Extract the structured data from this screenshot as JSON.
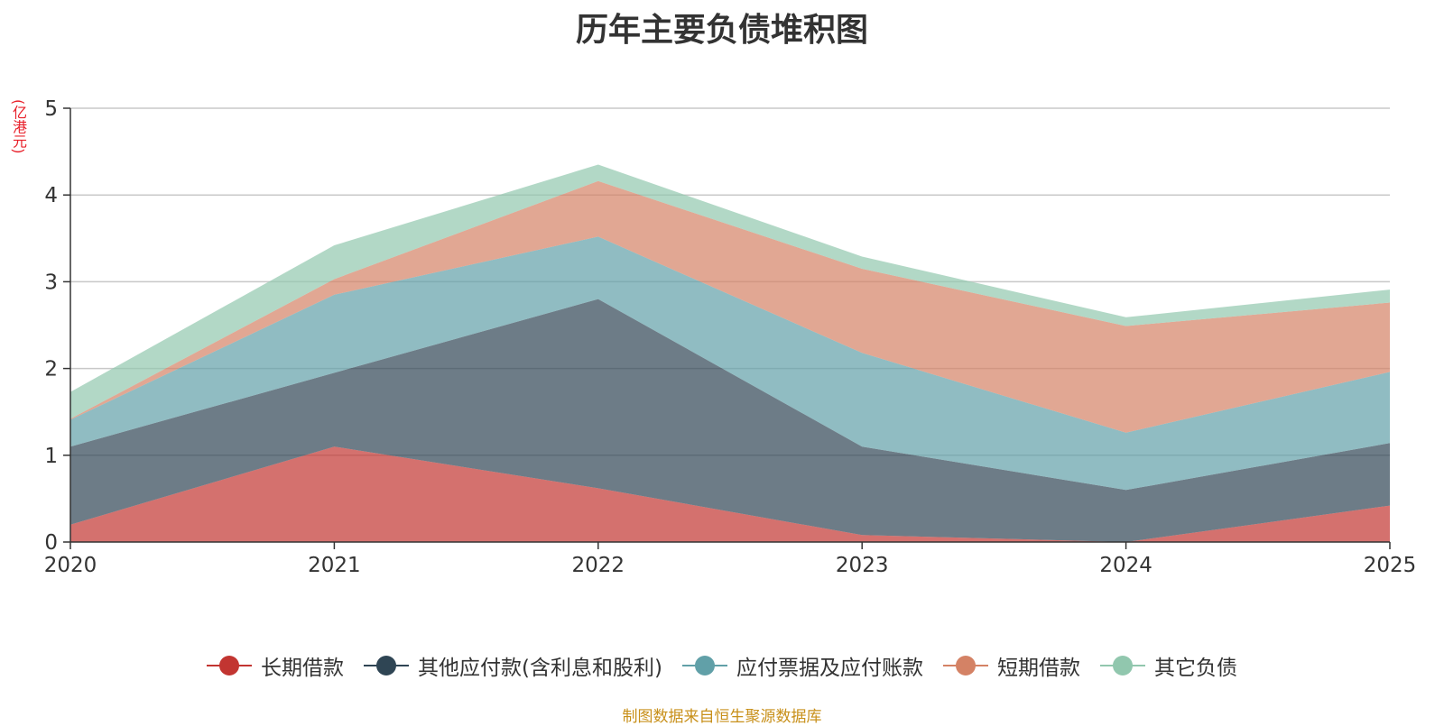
{
  "chart_data": {
    "type": "area",
    "stacked": true,
    "title": "历年主要负债堆积图",
    "ylabel": "(亿港元)",
    "xlabel": "",
    "x": [
      "2020",
      "2021",
      "2022",
      "2023",
      "2024",
      "2025"
    ],
    "ylim": [
      0,
      5
    ],
    "yticks": [
      "0",
      "1",
      "2",
      "3",
      "4",
      "5"
    ],
    "grid": true,
    "legend_position": "bottom",
    "series": [
      {
        "name": "长期借款",
        "color": "#c23531",
        "values": [
          0.2,
          1.1,
          0.62,
          0.08,
          0.0,
          0.42
        ]
      },
      {
        "name": "其他应付款(含利息和股利)",
        "color": "#2f4554",
        "values": [
          0.9,
          0.85,
          2.18,
          1.02,
          0.6,
          0.72
        ]
      },
      {
        "name": "应付票据及应付账款",
        "color": "#61a0a8",
        "values": [
          0.31,
          0.9,
          0.72,
          1.08,
          0.66,
          0.82
        ]
      },
      {
        "name": "短期借款",
        "color": "#d48265",
        "values": [
          0.01,
          0.18,
          0.64,
          0.97,
          1.23,
          0.8
        ]
      },
      {
        "name": "其它负债",
        "color": "#91c7ae",
        "values": [
          0.31,
          0.39,
          0.19,
          0.14,
          0.1,
          0.15
        ]
      }
    ]
  },
  "source_note": "制图数据来自恒生聚源数据库"
}
